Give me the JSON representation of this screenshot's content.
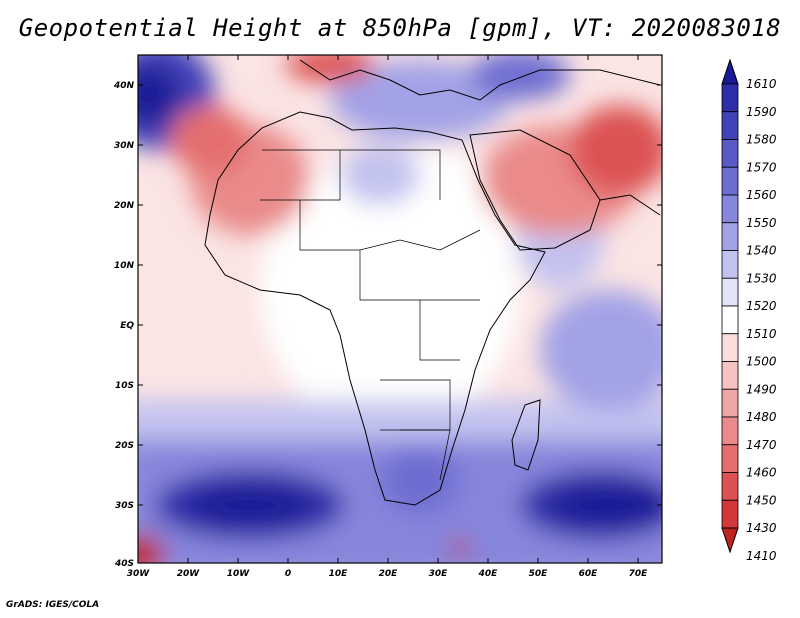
{
  "title": "Geopotential Height at 850hPa [gpm], VT: 2020083018",
  "credit": "GrADS: IGES/COLA",
  "map": {
    "lat_labels": [
      "40N",
      "30N",
      "20N",
      "10N",
      "EQ",
      "10S",
      "20S",
      "30S",
      "40S"
    ],
    "lon_labels": [
      "30W",
      "20W",
      "10W",
      "0",
      "10E",
      "20E",
      "30E",
      "40E",
      "50E",
      "60E",
      "70E"
    ],
    "lat_range": [
      -40,
      45
    ],
    "lon_range": [
      -30,
      75
    ]
  },
  "colorbar": {
    "labels": [
      "1610",
      "1590",
      "1580",
      "1570",
      "1560",
      "1550",
      "1540",
      "1530",
      "1520",
      "1510",
      "1500",
      "1490",
      "1480",
      "1470",
      "1460",
      "1450",
      "1430",
      "1410"
    ],
    "colors": [
      "#1a1a96",
      "#2e2ea8",
      "#4343b8",
      "#5a5ac6",
      "#6e6ed2",
      "#8686dc",
      "#a2a2e6",
      "#c3c3f0",
      "#e2e2f8",
      "#ffffff",
      "#fbdcdc",
      "#f6c2c2",
      "#f0a6a6",
      "#ea8a8a",
      "#e46e6e",
      "#dc5252",
      "#d23838",
      "#c02020"
    ]
  }
}
